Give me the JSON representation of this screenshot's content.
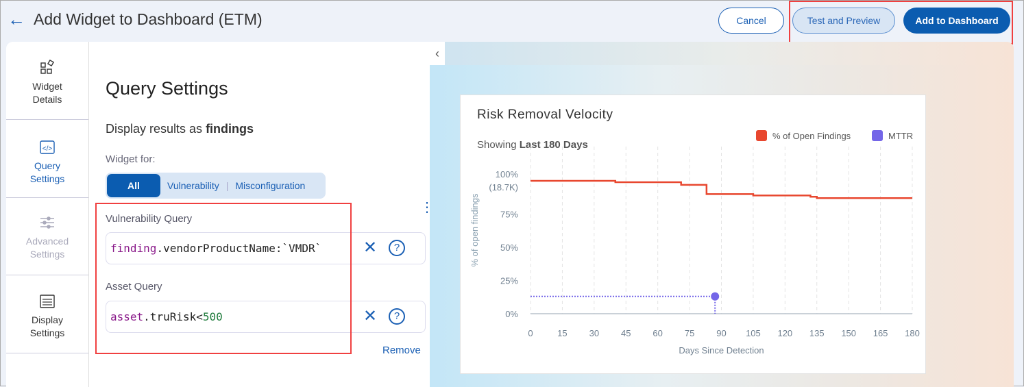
{
  "header": {
    "title": "Add Widget to Dashboard (ETM)",
    "back_icon": "arrow-left-icon",
    "cancel": "Cancel",
    "test_preview": "Test and Preview",
    "add": "Add to Dashboard"
  },
  "sidebar": {
    "items": [
      {
        "label1": "Widget",
        "label2": "Details",
        "icon": "widget-shapes-icon",
        "state": "normal"
      },
      {
        "label1": "Query",
        "label2": "Settings",
        "icon": "code-icon",
        "state": "active"
      },
      {
        "label1": "Advanced",
        "label2": "Settings",
        "icon": "sliders-icon",
        "state": "disabled"
      },
      {
        "label1": "Display",
        "label2": "Settings",
        "icon": "display-settings-icon",
        "state": "normal"
      }
    ]
  },
  "query": {
    "title": "Query Settings",
    "display_as": "Display results as ",
    "display_as_bold": "findings",
    "widget_for": "Widget for:",
    "segments": [
      "All",
      "Vulnerability",
      "Misconfiguration"
    ],
    "selected": "All",
    "vuln_label": "Vulnerability Query",
    "vuln_kw": "finding",
    "vuln_rest": ".vendorProductName:`VMDR`",
    "asset_label": "Asset Query",
    "asset_kw": "asset",
    "asset_rest": ".truRisk<",
    "asset_num": "500",
    "remove": "Remove"
  },
  "colors": {
    "primary": "#0b5cb0",
    "highlight": "#f04040",
    "open_findings": "#e8472f",
    "mttr": "#7466e8"
  },
  "chart_data": {
    "type": "line",
    "title": "Risk Removal Velocity",
    "subtitle_prefix": "Showing ",
    "subtitle_bold": "Last 180 Days",
    "xlabel": "Days Since Detection",
    "ylabel": "% of open findings",
    "xlim": [
      0,
      180
    ],
    "ylim": [
      0,
      100
    ],
    "xticks": [
      "0",
      "15",
      "30",
      "45",
      "60",
      "75",
      "90",
      "105",
      "120",
      "135",
      "150",
      "165",
      "180"
    ],
    "yticks": [
      "0%",
      "25%",
      "50%",
      "75%",
      "100%"
    ],
    "ytick_100_sub": "(18.7K)",
    "legend_position": "top-right",
    "grid": "vertical-dashed",
    "series": [
      {
        "name": "% of Open Findings",
        "step": true,
        "x": [
          0,
          40,
          71,
          83,
          105,
          132,
          135,
          180
        ],
        "y": [
          100,
          99,
          97,
          90,
          89,
          88,
          87,
          87
        ]
      },
      {
        "name": "MTTR",
        "point": {
          "x": 87,
          "y": 13
        }
      }
    ]
  }
}
